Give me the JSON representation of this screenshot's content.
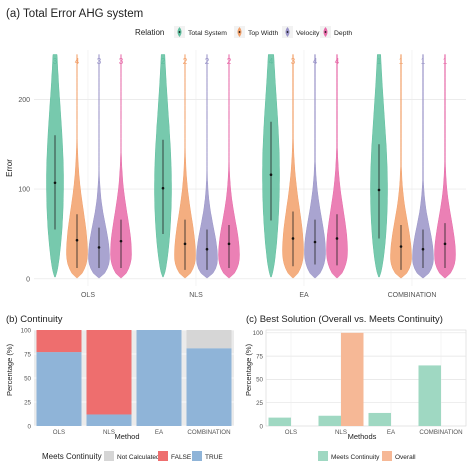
{
  "colors": {
    "total": "#5fbf9f",
    "top_width": "#f2a06a",
    "velocity": "#9a94c8",
    "depth": "#e76aa8",
    "not_calculated": "#d6d6d6",
    "false": "#ee6e6e",
    "true": "#8fb4d8",
    "meets": "#9fd8c2",
    "overall": "#f6b896"
  },
  "chart_data": [
    {
      "type": "violin",
      "title": "(a) Total Error AHG system",
      "ylabel": "Error",
      "ylim": [
        -8,
        255
      ],
      "yticks": [
        0,
        100,
        200
      ],
      "legend_title": "Relation",
      "legend_position": "top",
      "categories": [
        "OLS",
        "NLS",
        "EA",
        "COMBINATION"
      ],
      "series": [
        {
          "name": "Total System",
          "color_key": "total",
          "ranks": [
            "3",
            "2",
            "4",
            "1"
          ],
          "medians": [
            107,
            101,
            116,
            99
          ],
          "q1": [
            55,
            50,
            65,
            45
          ],
          "q3": [
            160,
            155,
            175,
            150
          ],
          "mins": [
            2,
            2,
            2,
            2
          ],
          "maxs": [
            250,
            250,
            250,
            250
          ]
        },
        {
          "name": "Top Width",
          "color_key": "top_width",
          "ranks": [
            "4",
            "2",
            "3",
            "1"
          ],
          "medians": [
            43,
            39,
            45,
            36
          ],
          "q1": [
            12,
            10,
            14,
            10
          ],
          "q3": [
            72,
            66,
            75,
            60
          ],
          "mins": [
            1,
            1,
            1,
            1
          ],
          "maxs": [
            250,
            250,
            250,
            250
          ]
        },
        {
          "name": "Velocity",
          "color_key": "velocity",
          "ranks": [
            "3",
            "2",
            "4",
            "1"
          ],
          "medians": [
            35,
            33,
            41,
            33
          ],
          "q1": [
            12,
            10,
            16,
            12
          ],
          "q3": [
            57,
            55,
            66,
            55
          ],
          "mins": [
            1,
            1,
            1,
            1
          ],
          "maxs": [
            250,
            250,
            250,
            250
          ]
        },
        {
          "name": "Depth",
          "color_key": "depth",
          "ranks": [
            "3",
            "2",
            "4",
            "1"
          ],
          "medians": [
            42,
            39,
            45,
            39
          ],
          "q1": [
            12,
            12,
            15,
            12
          ],
          "q3": [
            66,
            60,
            72,
            62
          ],
          "mins": [
            1,
            1,
            1,
            1
          ],
          "maxs": [
            250,
            250,
            250,
            250
          ]
        }
      ],
      "grid": true
    },
    {
      "type": "stacked_bar",
      "title": "(b) Continuity",
      "xlabel": "Method",
      "ylabel": "Percentage (%)",
      "ylim": [
        0,
        100
      ],
      "yticks": [
        0,
        25,
        50,
        75,
        100
      ],
      "categories": [
        "OLS",
        "NLS",
        "EA",
        "COMBINATION"
      ],
      "legend_title": "Meets Continuity",
      "legend_position": "bottom",
      "series": [
        {
          "name": "TRUE",
          "color_key": "true",
          "values": [
            77,
            12,
            100,
            81
          ]
        },
        {
          "name": "FALSE",
          "color_key": "false",
          "values": [
            23,
            88,
            0,
            0
          ]
        },
        {
          "name": "Not Calculated",
          "color_key": "not_calculated",
          "values": [
            0,
            0,
            0,
            19
          ]
        }
      ],
      "legend_order": [
        "Not Calculated",
        "FALSE",
        "TRUE"
      ]
    },
    {
      "type": "bar",
      "title": "(c) Best Solution (Overall vs. Meets Continuity)",
      "xlabel": "Methods",
      "ylabel": "Percentage (%)",
      "ylim": [
        0,
        103
      ],
      "yticks": [
        0,
        25,
        50,
        75,
        100
      ],
      "categories": [
        "OLS",
        "NLS",
        "EA",
        "COMBINATION"
      ],
      "legend_position": "bottom",
      "grid": true,
      "series": [
        {
          "name": "Meets Continuity",
          "color_key": "meets",
          "values": [
            9,
            11,
            14,
            65
          ]
        },
        {
          "name": "Overall",
          "color_key": "overall",
          "values": [
            0,
            100,
            0,
            0
          ]
        }
      ]
    }
  ]
}
